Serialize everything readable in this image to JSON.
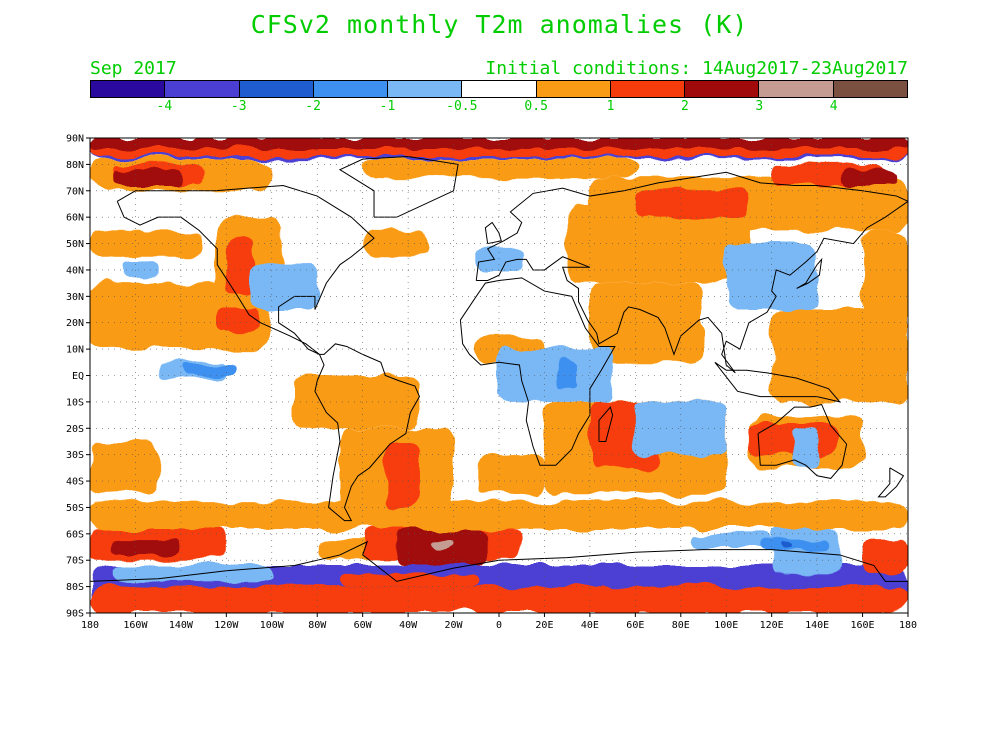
{
  "title": "CFSv2 monthly T2m anomalies (K)",
  "subtitle_left": "Sep 2017",
  "subtitle_right": "Initial conditions: 14Aug2017-23Aug2017",
  "colorbar": {
    "colors": [
      "#2a0a9e",
      "#4b3fd3",
      "#1f5ccf",
      "#3d8ff0",
      "#7ab8f5",
      "#ffffff",
      "#fa9b16",
      "#f73c0b",
      "#a10a0a",
      "#c49c92",
      "#7a5141"
    ],
    "labels": [
      "-4",
      "-3",
      "-2",
      "-1",
      "-0.5",
      "0.5",
      "1",
      "2",
      "3",
      "4"
    ]
  },
  "map": {
    "lat_labels": [
      "90N",
      "80N",
      "70N",
      "60N",
      "50N",
      "40N",
      "30N",
      "20N",
      "10N",
      "EQ",
      "10S",
      "20S",
      "30S",
      "40S",
      "50S",
      "60S",
      "70S",
      "80S",
      "90S"
    ],
    "lon_labels": [
      "180",
      "160W",
      "140W",
      "120W",
      "100W",
      "80W",
      "60W",
      "40W",
      "20W",
      "0",
      "20E",
      "40E",
      "60E",
      "80E",
      "100E",
      "120E",
      "140E",
      "160E",
      "180"
    ]
  }
}
